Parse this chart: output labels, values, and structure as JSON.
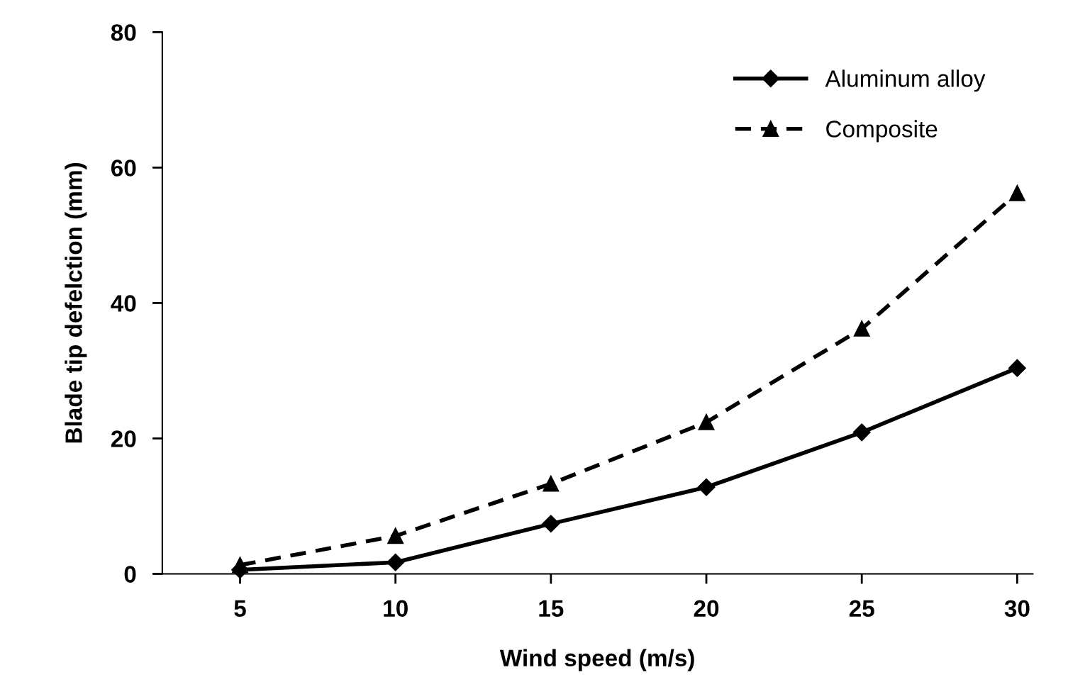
{
  "chart_data": {
    "type": "line",
    "xlabel": "Wind speed (m/s)",
    "ylabel": "Blade tip defelction (mm)",
    "x": [
      5,
      10,
      15,
      20,
      25,
      30
    ],
    "series": [
      {
        "name": "Aluminum alloy",
        "color": "#000000",
        "values": [
          0.6,
          1.7,
          7.4,
          12.8,
          20.9,
          30.4
        ],
        "marker": "diamond",
        "line_style": "solid"
      },
      {
        "name": "Composite",
        "color": "#000000",
        "values": [
          1.3,
          5.6,
          13.3,
          22.4,
          36.2,
          56.2
        ],
        "marker": "triangle",
        "line_style": "dashed"
      }
    ],
    "xlim": [
      2.5,
      30.5
    ],
    "xticks": [
      5,
      10,
      15,
      20,
      25,
      30
    ],
    "ylim": [
      0,
      80
    ],
    "yticks": [
      0,
      20,
      40,
      60,
      80
    ],
    "grid": false,
    "legend": "top right"
  }
}
